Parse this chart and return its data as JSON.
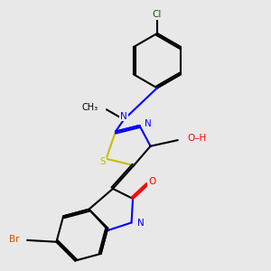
{
  "bg_color": "#e8e8e8",
  "bond_color": "#000000",
  "atom_colors": {
    "N": "#0000ff",
    "O": "#ff0000",
    "S": "#ccbb00",
    "Br": "#cc5500",
    "Cl": "#006600",
    "C": "#000000",
    "H": "#008888"
  }
}
